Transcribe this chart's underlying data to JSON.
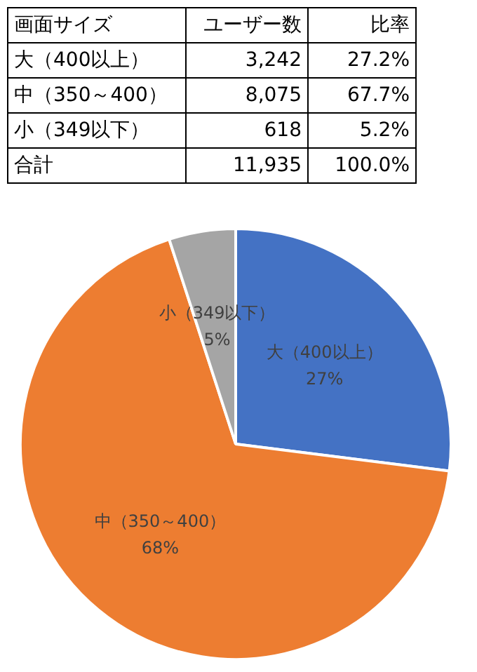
{
  "chart_data": {
    "type": "pie",
    "categories": [
      "大（400以上）",
      "中（350～400）",
      "小（349以下）"
    ],
    "values": [
      27,
      68,
      5
    ],
    "value_labels": [
      "27%",
      "68%",
      "5%"
    ],
    "colors": [
      "#4472c4",
      "#ed7d31",
      "#a5a5a5"
    ],
    "annotations": [
      "画面サイズ",
      "ユーザー数",
      "比率",
      "27.2%",
      "67.7%",
      "5.2%",
      "合計",
      "11,935",
      "100.0%",
      "3,242",
      "8,075",
      "618"
    ],
    "legend": false
  }
}
